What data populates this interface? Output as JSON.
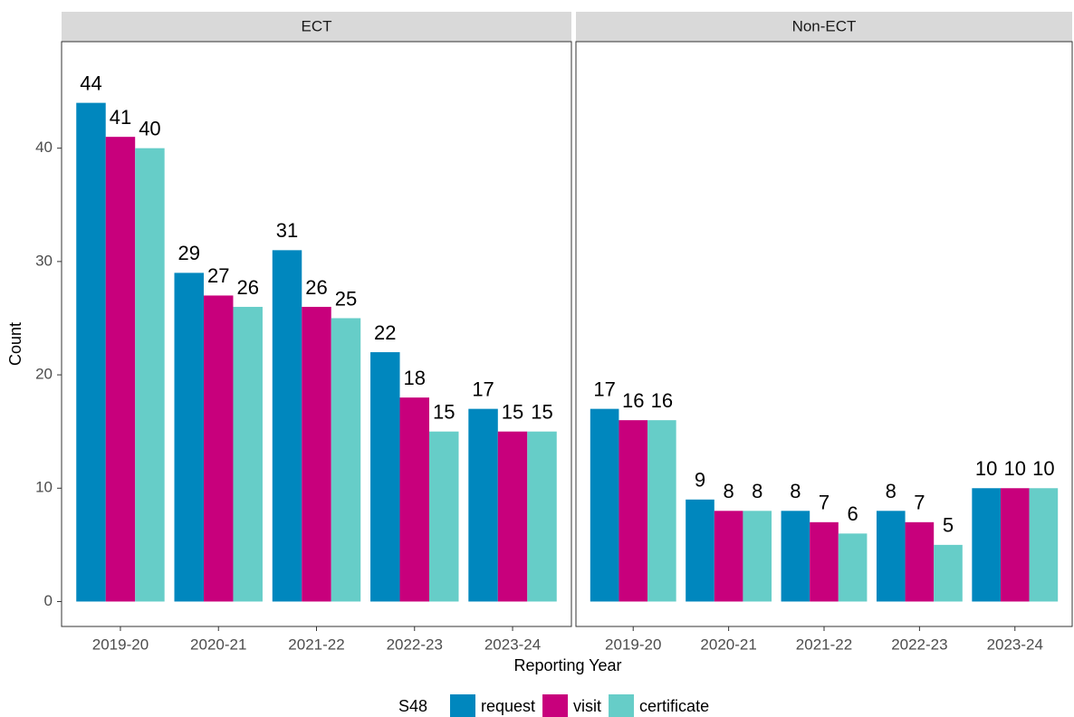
{
  "chart_data": {
    "type": "bar",
    "facets": [
      "ECT",
      "Non-ECT"
    ],
    "categories": [
      "2019-20",
      "2020-21",
      "2021-22",
      "2022-23",
      "2023-24"
    ],
    "series": [
      {
        "name": "request",
        "color": "#0087be",
        "values": [
          [
            44,
            29,
            31,
            22,
            17
          ],
          [
            17,
            9,
            8,
            8,
            10
          ]
        ]
      },
      {
        "name": "visit",
        "color": "#c8007c",
        "values": [
          [
            41,
            27,
            26,
            18,
            15
          ],
          [
            16,
            8,
            7,
            7,
            10
          ]
        ]
      },
      {
        "name": "certificate",
        "color": "#66cdc8",
        "values": [
          [
            40,
            26,
            25,
            15,
            15
          ],
          [
            16,
            8,
            6,
            5,
            10
          ]
        ]
      }
    ],
    "ylim": [
      -2.2,
      49.4
    ],
    "yticks": [
      0,
      10,
      20,
      30,
      40
    ],
    "x_label": "Reporting Year",
    "y_label": "Count",
    "legend_title": "S48"
  }
}
